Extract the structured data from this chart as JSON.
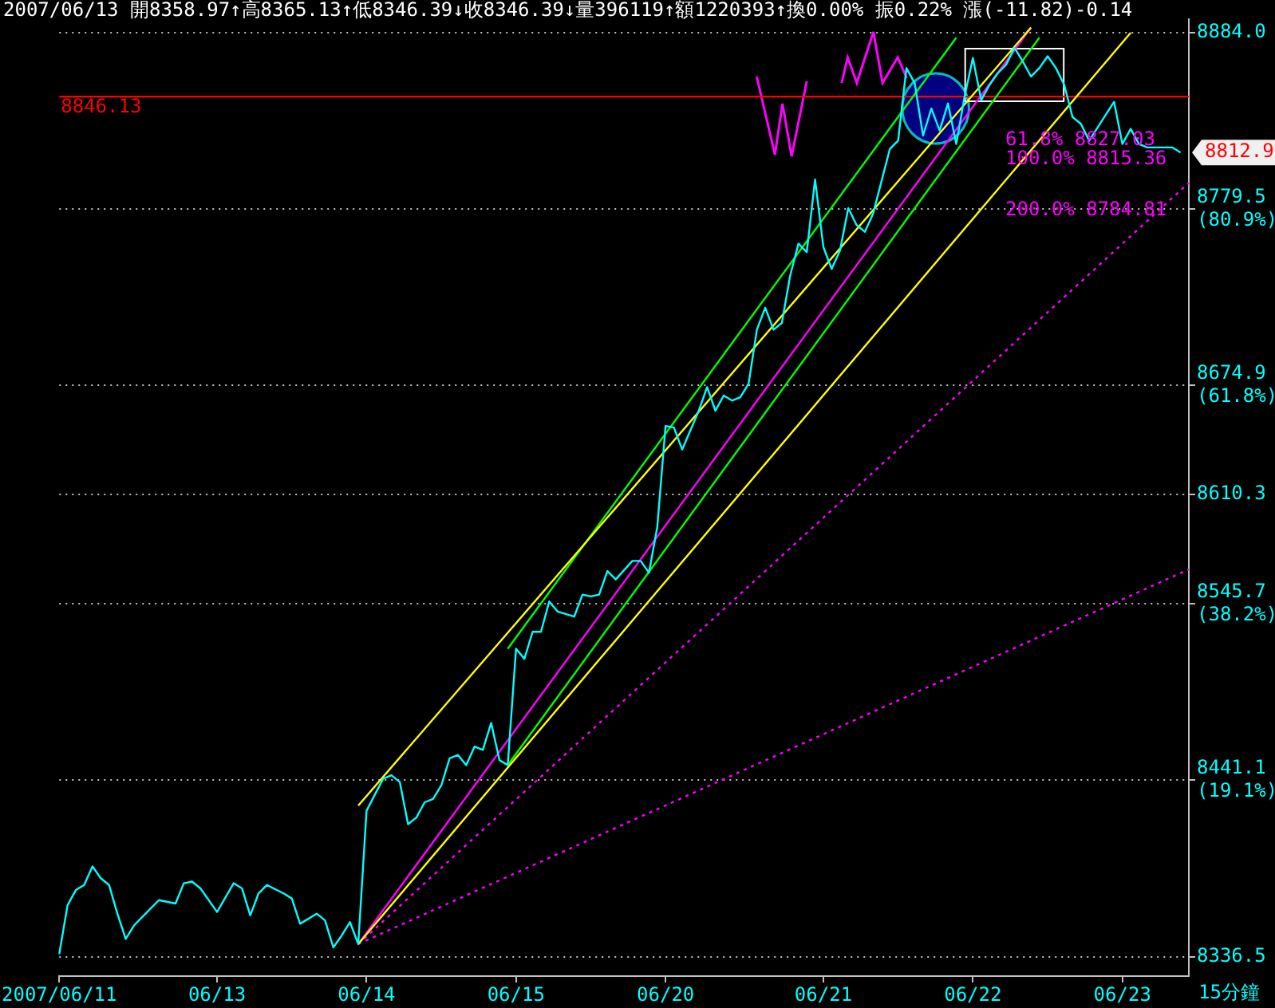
{
  "chart_data": {
    "type": "line",
    "title": "2007/06/13 開8358.97↑高8365.13↑低8346.39↓收8346.39↓量396119↑額1220393↑換0.00% 振0.22% 漲(-11.82)-0.14",
    "xlabel": "15分鐘",
    "categories": [
      "2007/06/11",
      null,
      null,
      null,
      null,
      null,
      null,
      null,
      null,
      null,
      null,
      null,
      null,
      null,
      null,
      null,
      null,
      null,
      null,
      "06/13",
      null,
      null,
      null,
      null,
      null,
      null,
      null,
      null,
      null,
      null,
      null,
      null,
      null,
      null,
      null,
      null,
      null,
      "06/14",
      null,
      null,
      null,
      null,
      null,
      null,
      null,
      null,
      null,
      null,
      null,
      null,
      null,
      null,
      null,
      null,
      null,
      "06/15",
      null,
      null,
      null,
      null,
      null,
      null,
      null,
      null,
      null,
      null,
      null,
      null,
      null,
      null,
      null,
      null,
      null,
      "06/20",
      null,
      null,
      null,
      null,
      null,
      null,
      null,
      null,
      null,
      null,
      null,
      null,
      null,
      null,
      null,
      null,
      null,
      null,
      "06/21",
      null,
      null,
      null,
      null,
      null,
      null,
      null,
      null,
      null,
      null,
      null,
      null,
      null,
      null,
      null,
      null,
      null,
      "06/22",
      null,
      null,
      null,
      null,
      null,
      null,
      null,
      null,
      null,
      null,
      null,
      null,
      null,
      null,
      null,
      null,
      null,
      "06/23",
      null,
      null,
      null,
      null,
      null,
      null,
      null,
      null
    ],
    "ylim": [
      8325,
      8892
    ],
    "yticks": [
      8336.5,
      {
        "value": 8441.1,
        "label": "8441.1 (19.1%)"
      },
      {
        "value": 8545.7,
        "label": "8545.7 (38.2%)"
      },
      8610.3,
      {
        "value": 8674.9,
        "label": "8674.9 (61.8%)"
      },
      {
        "value": 8779.5,
        "label": "8779.5 (80.9%)"
      },
      {
        "value": 8884,
        "label": "8884.0"
      }
    ],
    "grid": "y",
    "legend": false,
    "marker": "none",
    "series": [
      {
        "color": "#00ffff",
        "values": [
          8338,
          8367,
          8376,
          8379,
          8390,
          8383,
          8379,
          8362,
          8347,
          8355,
          8360,
          null,
          8370,
          null,
          8368,
          8380,
          8381,
          8377,
          null,
          8363,
          null,
          8380,
          8377,
          8361,
          8374,
          8379,
          null,
          8374,
          8371,
          8356,
          null,
          8362,
          8358,
          8342,
          8349,
          8357,
          8344,
          8423,
          null,
          8442,
          8444,
          8440,
          8415,
          8419,
          8428,
          8430,
          8438,
          8454,
          8456,
          8450,
          8461,
          8459,
          8475,
          8453,
          8450,
          8519,
          8513,
          8529,
          8529,
          8547,
          8541,
          null,
          8538,
          8551,
          8550,
          8551,
          8565,
          8560,
          null,
          8571,
          8571,
          8564,
          8591,
          8651,
          8650,
          8637,
          null,
          8660,
          8674,
          8660,
          8669,
          8666,
          8668,
          8676,
          8708,
          8721,
          8708,
          8712,
          8740,
          8759,
          8754,
          8797,
          8757,
          8744,
          8755,
          8780,
          8770,
          8766,
          8777,
          8796,
          8815,
          8820,
          8863,
          8854,
          8823,
          8839,
          8826,
          8842,
          8818,
          8846,
          8869,
          8844,
          8853,
          8860,
          8865,
          8875,
          8867,
          8858,
          8863,
          8870,
          8863,
          8853,
          8834,
          8830,
          8820,
          null,
          null,
          8843,
          8818,
          8827,
          8818,
          8816,
          8816,
          null,
          8816,
          8813,
          null
        ]
      },
      {
        "color": "#ffff00",
        "values": [
          null,
          null,
          null,
          null,
          null,
          null,
          null,
          null,
          null,
          null,
          null,
          null,
          null,
          null,
          null,
          null,
          null,
          null,
          null,
          null,
          null,
          null,
          null,
          null,
          null,
          null,
          null,
          null,
          null,
          null,
          null,
          null,
          null,
          null,
          null,
          null,
          8426,
          null,
          null,
          null,
          null,
          null,
          null,
          null,
          null,
          null,
          null,
          null,
          null,
          null,
          null,
          null,
          null,
          null,
          null,
          null,
          null,
          null,
          null,
          null,
          null,
          null,
          null,
          null,
          null,
          null,
          null,
          null,
          null,
          null,
          null,
          null,
          null,
          null,
          null,
          null,
          null,
          null,
          null,
          null,
          null,
          null,
          null,
          null,
          null,
          null,
          null,
          null,
          null,
          null,
          null,
          null,
          null,
          null,
          null,
          null,
          null,
          null,
          null,
          null,
          null,
          null,
          null,
          null,
          null,
          null,
          null,
          null,
          null,
          null,
          null,
          null,
          null,
          null,
          null,
          null,
          null,
          8887,
          null,
          null,
          null,
          null,
          null,
          null,
          null,
          null,
          null,
          null,
          null,
          null,
          null,
          null,
          null,
          null,
          null,
          null,
          null
        ]
      },
      {
        "color": "#ffff00",
        "values": [
          null,
          null,
          null,
          null,
          null,
          null,
          null,
          null,
          null,
          null,
          null,
          null,
          null,
          null,
          null,
          null,
          null,
          null,
          null,
          null,
          null,
          null,
          null,
          null,
          null,
          null,
          null,
          null,
          null,
          null,
          null,
          null,
          null,
          null,
          null,
          null,
          8344,
          null,
          null,
          null,
          null,
          null,
          null,
          null,
          null,
          null,
          null,
          null,
          null,
          null,
          null,
          null,
          null,
          null,
          null,
          null,
          null,
          null,
          null,
          null,
          null,
          null,
          null,
          null,
          null,
          null,
          null,
          null,
          null,
          null,
          null,
          null,
          null,
          null,
          null,
          null,
          null,
          null,
          null,
          null,
          null,
          null,
          null,
          null,
          null,
          null,
          null,
          null,
          null,
          null,
          null,
          null,
          null,
          null,
          null,
          null,
          null,
          null,
          null,
          null,
          null,
          null,
          null,
          null,
          null,
          null,
          null,
          null,
          null,
          null,
          null,
          null,
          null,
          null,
          null,
          null,
          null,
          null,
          null,
          null,
          null,
          null,
          null,
          null,
          null,
          null,
          null,
          null,
          null,
          8884,
          null,
          null,
          null,
          null,
          null,
          null,
          null
        ]
      },
      {
        "color": "#00ff00",
        "values": [
          null,
          null,
          null,
          null,
          null,
          null,
          null,
          null,
          null,
          null,
          null,
          null,
          null,
          null,
          null,
          null,
          null,
          null,
          null,
          null,
          null,
          null,
          null,
          null,
          null,
          null,
          null,
          null,
          null,
          null,
          null,
          null,
          null,
          null,
          null,
          null,
          null,
          null,
          null,
          null,
          null,
          null,
          null,
          null,
          null,
          null,
          null,
          null,
          null,
          null,
          null,
          null,
          null,
          null,
          8519,
          null,
          null,
          null,
          null,
          null,
          null,
          null,
          null,
          null,
          null,
          null,
          null,
          null,
          null,
          null,
          null,
          null,
          null,
          null,
          null,
          null,
          null,
          null,
          null,
          null,
          null,
          null,
          null,
          null,
          null,
          null,
          null,
          null,
          null,
          null,
          null,
          null,
          null,
          null,
          null,
          null,
          null,
          null,
          null,
          null,
          null,
          null,
          null,
          null,
          null,
          null,
          null,
          null,
          8881,
          null,
          null,
          null,
          null,
          null,
          null,
          null,
          null,
          null,
          null,
          null,
          null,
          null,
          null,
          null,
          null,
          null,
          null,
          null,
          null,
          null,
          null,
          null,
          null,
          null,
          null,
          null,
          null
        ]
      },
      {
        "color": "#00ff00",
        "values": [
          null,
          null,
          null,
          null,
          null,
          null,
          null,
          null,
          null,
          null,
          null,
          null,
          null,
          null,
          null,
          null,
          null,
          null,
          null,
          null,
          null,
          null,
          null,
          null,
          null,
          null,
          null,
          null,
          null,
          null,
          null,
          null,
          null,
          null,
          null,
          null,
          null,
          null,
          null,
          null,
          null,
          null,
          null,
          null,
          null,
          null,
          null,
          null,
          null,
          null,
          null,
          null,
          null,
          null,
          8450,
          null,
          null,
          null,
          null,
          null,
          null,
          null,
          null,
          null,
          null,
          null,
          null,
          null,
          null,
          null,
          null,
          null,
          null,
          null,
          null,
          null,
          null,
          null,
          null,
          null,
          null,
          null,
          null,
          null,
          null,
          null,
          null,
          null,
          null,
          null,
          null,
          null,
          null,
          null,
          null,
          null,
          null,
          null,
          null,
          null,
          null,
          null,
          null,
          null,
          null,
          null,
          null,
          null,
          null,
          null,
          null,
          null,
          null,
          null,
          null,
          null,
          null,
          null,
          8881,
          null,
          null,
          null,
          null,
          null,
          null,
          null,
          null,
          null,
          null,
          null,
          null,
          null,
          null,
          null,
          null,
          null,
          null
        ]
      },
      {
        "color": "#ff00ff",
        "values": [
          null,
          null,
          null,
          null,
          null,
          null,
          null,
          null,
          null,
          null,
          null,
          null,
          null,
          null,
          null,
          null,
          null,
          null,
          null,
          null,
          null,
          null,
          null,
          null,
          null,
          null,
          null,
          null,
          null,
          null,
          null,
          null,
          null,
          null,
          null,
          null,
          8344,
          null,
          null,
          null,
          null,
          null,
          null,
          null,
          null,
          null,
          null,
          null,
          null,
          null,
          null,
          null,
          null,
          null,
          null,
          null,
          null,
          null,
          null,
          null,
          null,
          null,
          null,
          null,
          null,
          null,
          null,
          null,
          null,
          null,
          null,
          null,
          null,
          null,
          null,
          null,
          null,
          null,
          null,
          null,
          null,
          null,
          null,
          null,
          null,
          null,
          null,
          null,
          null,
          null,
          null,
          null,
          null,
          null,
          null,
          null,
          null,
          null,
          null,
          null,
          null,
          null,
          null,
          null,
          null,
          null,
          null,
          null,
          null,
          null,
          null,
          null,
          null,
          null,
          null,
          null,
          null,
          8887,
          null,
          null,
          null,
          null,
          null,
          null,
          null,
          null,
          null,
          null,
          null,
          null,
          null,
          null,
          null,
          null,
          null,
          null,
          null
        ]
      },
      {
        "color": "#ff00ff",
        "line_style": "dotted",
        "values": [
          null,
          null,
          null,
          null,
          null,
          null,
          null,
          null,
          null,
          null,
          null,
          null,
          null,
          null,
          null,
          null,
          null,
          null,
          null,
          null,
          null,
          null,
          null,
          null,
          null,
          null,
          null,
          null,
          null,
          null,
          null,
          null,
          null,
          null,
          null,
          null,
          8344,
          null,
          null,
          null,
          null,
          null,
          null,
          null,
          null,
          null,
          null,
          null,
          null,
          null,
          null,
          null,
          null,
          null,
          null,
          null,
          null,
          null,
          null,
          null,
          null,
          null,
          null,
          null,
          null,
          null,
          null,
          null,
          null,
          null,
          null,
          null,
          null,
          null,
          null,
          null,
          null,
          null,
          null,
          null,
          null,
          null,
          null,
          null,
          null,
          null,
          null,
          null,
          null,
          null,
          null,
          null,
          null,
          null,
          null,
          null,
          null,
          null,
          null,
          null,
          null,
          null,
          null,
          null,
          null,
          null,
          null,
          null,
          null,
          null,
          null,
          null,
          null,
          null,
          null,
          null,
          null,
          null,
          null,
          null,
          null,
          null,
          null,
          null,
          null,
          null,
          null,
          null,
          null,
          null,
          null,
          null,
          null,
          null,
          null,
          null,
          8795
        ]
      },
      {
        "color": "#ff00ff",
        "line_style": "dotted",
        "values": [
          null,
          null,
          null,
          null,
          null,
          null,
          null,
          null,
          null,
          null,
          null,
          null,
          null,
          null,
          null,
          null,
          null,
          null,
          null,
          null,
          null,
          null,
          null,
          null,
          null,
          null,
          null,
          null,
          null,
          null,
          null,
          null,
          null,
          null,
          null,
          null,
          8344,
          null,
          null,
          null,
          null,
          null,
          null,
          null,
          null,
          null,
          null,
          null,
          null,
          null,
          null,
          null,
          null,
          null,
          null,
          null,
          null,
          null,
          null,
          null,
          null,
          null,
          null,
          null,
          null,
          null,
          null,
          null,
          null,
          null,
          null,
          null,
          null,
          null,
          null,
          null,
          null,
          null,
          null,
          null,
          null,
          null,
          null,
          null,
          null,
          null,
          null,
          null,
          null,
          null,
          null,
          null,
          null,
          null,
          null,
          null,
          null,
          null,
          null,
          null,
          null,
          null,
          null,
          null,
          null,
          null,
          null,
          null,
          null,
          null,
          null,
          null,
          null,
          null,
          null,
          null,
          null,
          null,
          null,
          null,
          null,
          null,
          null,
          null,
          null,
          null,
          null,
          null,
          null,
          null,
          null,
          null,
          null,
          null,
          null,
          null,
          8566
        ]
      }
    ],
    "ref_lines": [
      {
        "axis": "y",
        "value": 8846.13,
        "label": "8846.13",
        "color": "#ff0000"
      }
    ],
    "annotations": [
      "61.8% 8827.03",
      "100.0% 8815.36",
      "200.0% 8784.81",
      "8812.9"
    ]
  }
}
